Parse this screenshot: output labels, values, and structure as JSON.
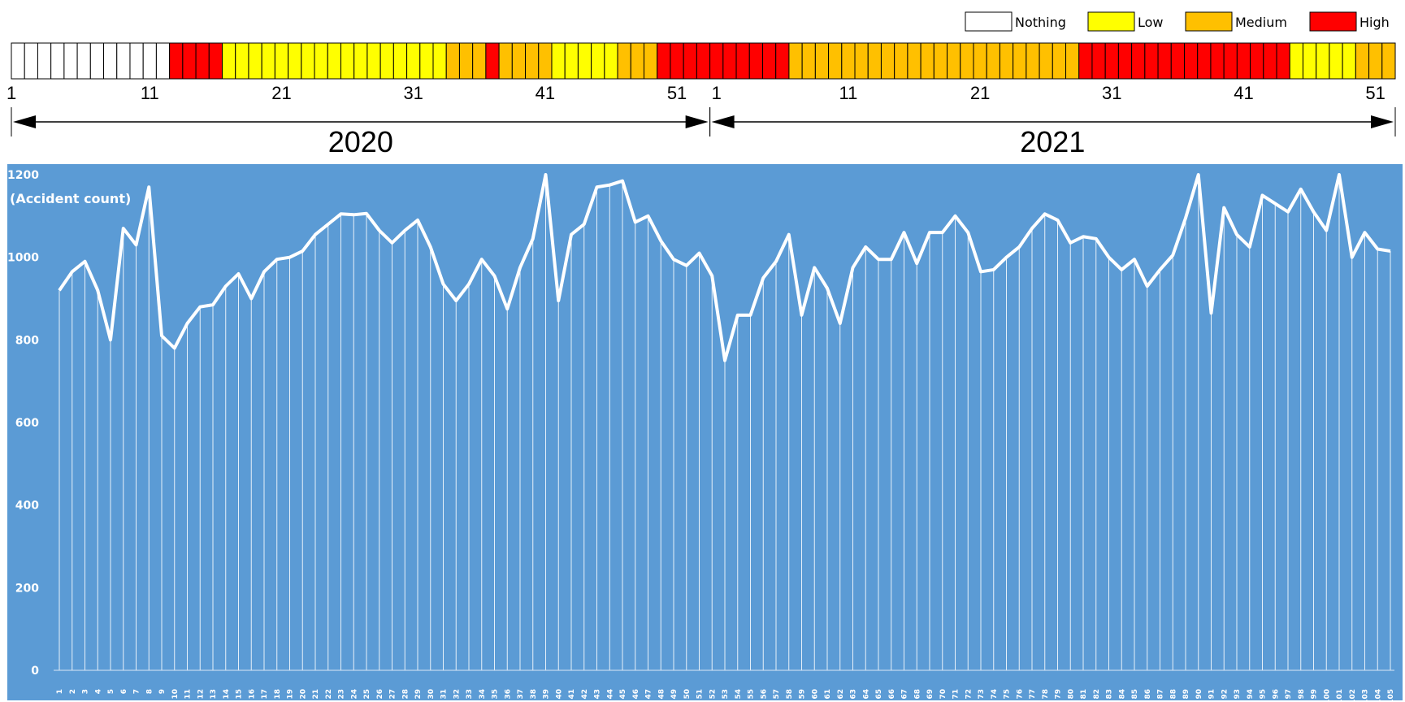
{
  "legend": [
    {
      "label": "Nothing",
      "color": "#FFFFFF"
    },
    {
      "label": "Low",
      "color": "#FFFF00"
    },
    {
      "label": "Medium",
      "color": "#FFC000"
    },
    {
      "label": "High",
      "color": "#FF0000"
    }
  ],
  "band": {
    "runs": [
      {
        "level": "Nothing",
        "count": 12
      },
      {
        "level": "High",
        "count": 4
      },
      {
        "level": "Low",
        "count": 17
      },
      {
        "level": "Medium",
        "count": 3
      },
      {
        "level": "High",
        "count": 1
      },
      {
        "level": "Medium",
        "count": 4
      },
      {
        "level": "Low",
        "count": 5
      },
      {
        "level": "Medium",
        "count": 3
      },
      {
        "level": "High",
        "count": 10
      },
      {
        "level": "Medium",
        "count": 22
      },
      {
        "level": "High",
        "count": 16
      },
      {
        "level": "Low",
        "count": 5
      },
      {
        "level": "Medium",
        "count": 3
      }
    ],
    "week_labels": [
      {
        "text": "1",
        "cell": 1
      },
      {
        "text": "11",
        "cell": 11
      },
      {
        "text": "21",
        "cell": 21
      },
      {
        "text": "31",
        "cell": 31
      },
      {
        "text": "41",
        "cell": 41
      },
      {
        "text": "51",
        "cell": 51
      },
      {
        "text": "1",
        "cell": 54
      },
      {
        "text": "11",
        "cell": 64
      },
      {
        "text": "21",
        "cell": 74
      },
      {
        "text": "31",
        "cell": 84
      },
      {
        "text": "41",
        "cell": 94
      },
      {
        "text": "51",
        "cell": 104
      }
    ],
    "years": [
      {
        "label": "2020",
        "first_cell": 1,
        "last_cell": 53
      },
      {
        "label": "2021",
        "first_cell": 54,
        "last_cell": 105
      }
    ]
  },
  "chart_data": {
    "type": "line",
    "ylabel": "(Accident count)",
    "ylim": [
      0,
      1200
    ],
    "yticks": [
      0,
      200,
      400,
      600,
      800,
      1000,
      1200
    ],
    "grid": false,
    "background": "#5B9BD5",
    "line_color": "#FFFFFF",
    "drop_lines": true,
    "x": [
      1,
      2,
      3,
      4,
      5,
      6,
      7,
      8,
      9,
      10,
      11,
      12,
      13,
      14,
      15,
      16,
      17,
      18,
      19,
      20,
      21,
      22,
      23,
      24,
      25,
      26,
      27,
      28,
      29,
      30,
      31,
      32,
      33,
      34,
      35,
      36,
      37,
      38,
      39,
      40,
      41,
      42,
      43,
      44,
      45,
      46,
      47,
      48,
      49,
      50,
      51,
      52,
      53,
      54,
      55,
      56,
      57,
      58,
      59,
      60,
      61,
      62,
      63,
      64,
      65,
      66,
      67,
      68,
      69,
      70,
      71,
      72,
      73,
      74,
      75,
      76,
      77,
      78,
      79,
      80,
      81,
      82,
      83,
      84,
      85,
      86,
      87,
      88,
      89,
      90,
      91,
      92,
      93,
      94,
      95,
      96,
      97,
      98,
      99,
      100,
      101,
      102,
      103,
      104,
      105
    ],
    "values": [
      920,
      965,
      990,
      920,
      800,
      1070,
      1030,
      1170,
      810,
      780,
      840,
      880,
      885,
      930,
      960,
      900,
      965,
      995,
      1000,
      1015,
      1055,
      1080,
      1105,
      1103,
      1106,
      1065,
      1035,
      1065,
      1090,
      1025,
      935,
      895,
      935,
      995,
      955,
      875,
      975,
      1045,
      1200,
      895,
      1055,
      1080,
      1170,
      1175,
      1185,
      1085,
      1100,
      1040,
      995,
      980,
      1010,
      955,
      750,
      860,
      860,
      950,
      990,
      1055,
      860,
      975,
      925,
      840,
      975,
      1025,
      995,
      995,
      1060,
      985,
      1060,
      1060,
      1100,
      1060,
      965,
      970,
      1000,
      1025,
      1070,
      1105,
      1090,
      1035,
      1050,
      1045,
      1000,
      970,
      995,
      930,
      970,
      1005,
      1095,
      1200,
      865,
      1120,
      1055,
      1025,
      1150,
      1130,
      1110,
      1165,
      1110,
      1065,
      1200,
      1000,
      1060,
      1020,
      1015
    ]
  }
}
